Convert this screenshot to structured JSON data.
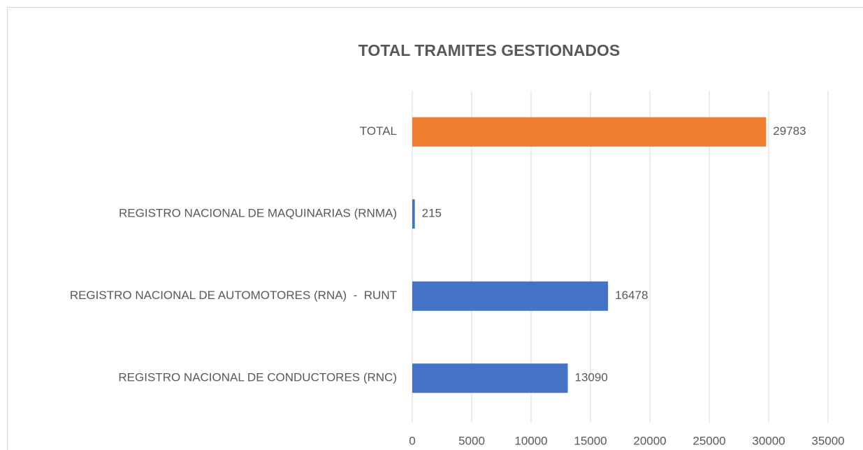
{
  "chart_data": {
    "type": "bar",
    "orientation": "horizontal",
    "title": "TOTAL TRAMITES GESTIONADOS",
    "categories": [
      "TOTAL",
      "REGISTRO NACIONAL DE MAQUINARIAS (RNMA)",
      "REGISTRO NACIONAL DE AUTOMOTORES (RNA)  -  RUNT",
      "REGISTRO NACIONAL DE CONDUCTORES (RNC)"
    ],
    "values": [
      29783,
      215,
      16478,
      13090
    ],
    "colors": [
      "#ed7d31",
      "#4472c4",
      "#4472c4",
      "#4472c4"
    ],
    "xlim": [
      0,
      35000
    ],
    "xticks": [
      0,
      5000,
      10000,
      15000,
      20000,
      25000,
      30000,
      35000
    ],
    "grid": true
  }
}
